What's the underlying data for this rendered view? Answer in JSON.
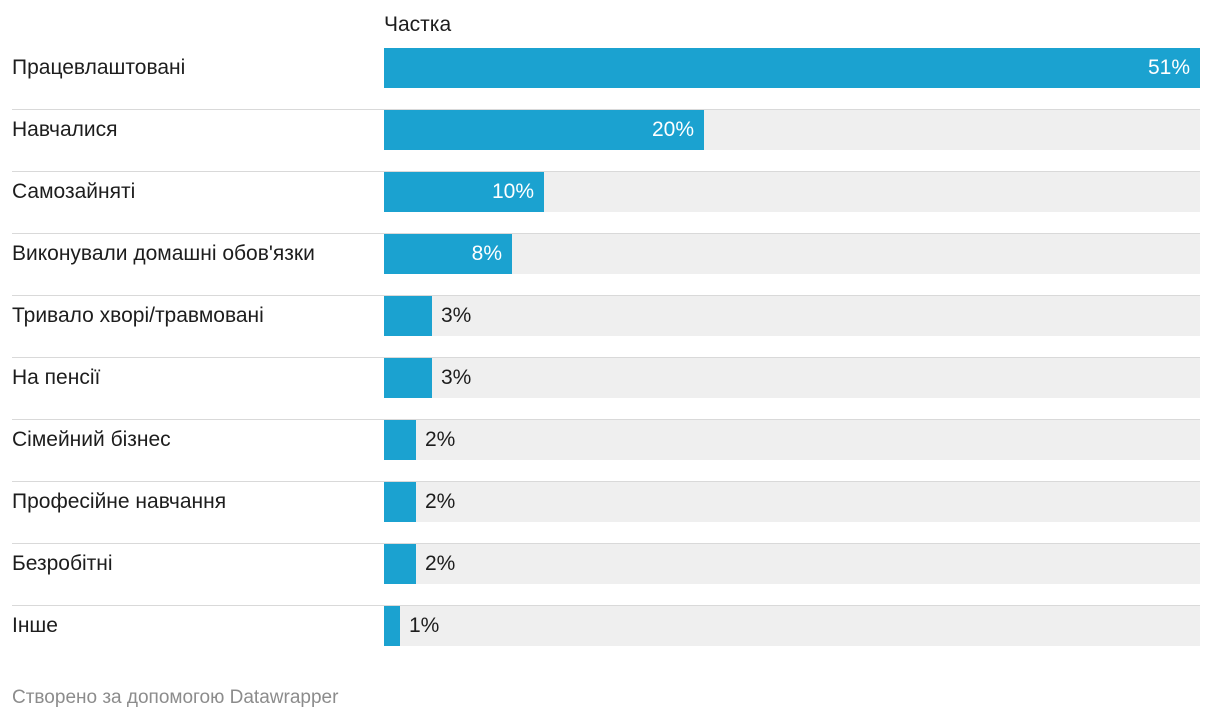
{
  "chart_data": {
    "type": "bar",
    "orientation": "horizontal",
    "column_header": "Частка",
    "categories": [
      "Працевлаштовані",
      "Навчалися",
      "Самозайняті",
      "Виконували домашні обов'язки",
      "Тривало хворі/травмовані",
      "На пенсії",
      "Сімейний бізнес",
      "Професійне навчання",
      "Безробітні",
      "Інше"
    ],
    "values": [
      51,
      20,
      10,
      8,
      3,
      3,
      2,
      2,
      2,
      1
    ],
    "value_labels": [
      "51%",
      "20%",
      "10%",
      "8%",
      "3%",
      "3%",
      "2%",
      "2%",
      "2%",
      "1%"
    ],
    "xlim": [
      0,
      51
    ],
    "grid": false,
    "legend": "none",
    "colors": {
      "bar": "#1ba2d0",
      "track": "#efefef"
    }
  },
  "footer": {
    "credit": "Створено за допомогою Datawrapper"
  }
}
